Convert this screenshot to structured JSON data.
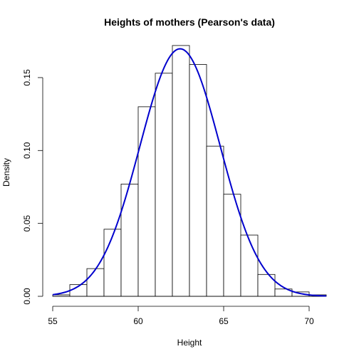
{
  "chart_data": {
    "type": "bar",
    "title": "Heights of mothers (Pearson's data)",
    "xlabel": "Height",
    "ylabel": "Density",
    "xlim": [
      55,
      71
    ],
    "ylim": [
      0,
      0.17
    ],
    "x_ticks": [
      55,
      60,
      65,
      70
    ],
    "x_tick_labels": [
      "55",
      "60",
      "65",
      "70"
    ],
    "y_ticks": [
      0,
      0.05,
      0.1,
      0.15
    ],
    "y_tick_labels": [
      "0.00",
      "0.05",
      "0.10",
      "0.15"
    ],
    "bins": [
      {
        "start": 55,
        "end": 56,
        "density": 0.001
      },
      {
        "start": 56,
        "end": 57,
        "density": 0.008
      },
      {
        "start": 57,
        "end": 58,
        "density": 0.019
      },
      {
        "start": 58,
        "end": 59,
        "density": 0.046
      },
      {
        "start": 59,
        "end": 60,
        "density": 0.077
      },
      {
        "start": 60,
        "end": 61,
        "density": 0.13
      },
      {
        "start": 61,
        "end": 62,
        "density": 0.153
      },
      {
        "start": 62,
        "end": 63,
        "density": 0.172
      },
      {
        "start": 63,
        "end": 64,
        "density": 0.159
      },
      {
        "start": 64,
        "end": 65,
        "density": 0.103
      },
      {
        "start": 65,
        "end": 66,
        "density": 0.07
      },
      {
        "start": 66,
        "end": 67,
        "density": 0.042
      },
      {
        "start": 67,
        "end": 68,
        "density": 0.015
      },
      {
        "start": 68,
        "end": 69,
        "density": 0.005
      },
      {
        "start": 69,
        "end": 70,
        "density": 0.003
      },
      {
        "start": 70,
        "end": 71,
        "density": 0.001
      }
    ],
    "curve": {
      "type": "normal-density",
      "mean": 62.45,
      "sd": 2.35,
      "color": "#0000cd"
    },
    "bar_fill": "#ffffff",
    "bar_stroke": "#000000",
    "grid": false,
    "legend": "none"
  }
}
